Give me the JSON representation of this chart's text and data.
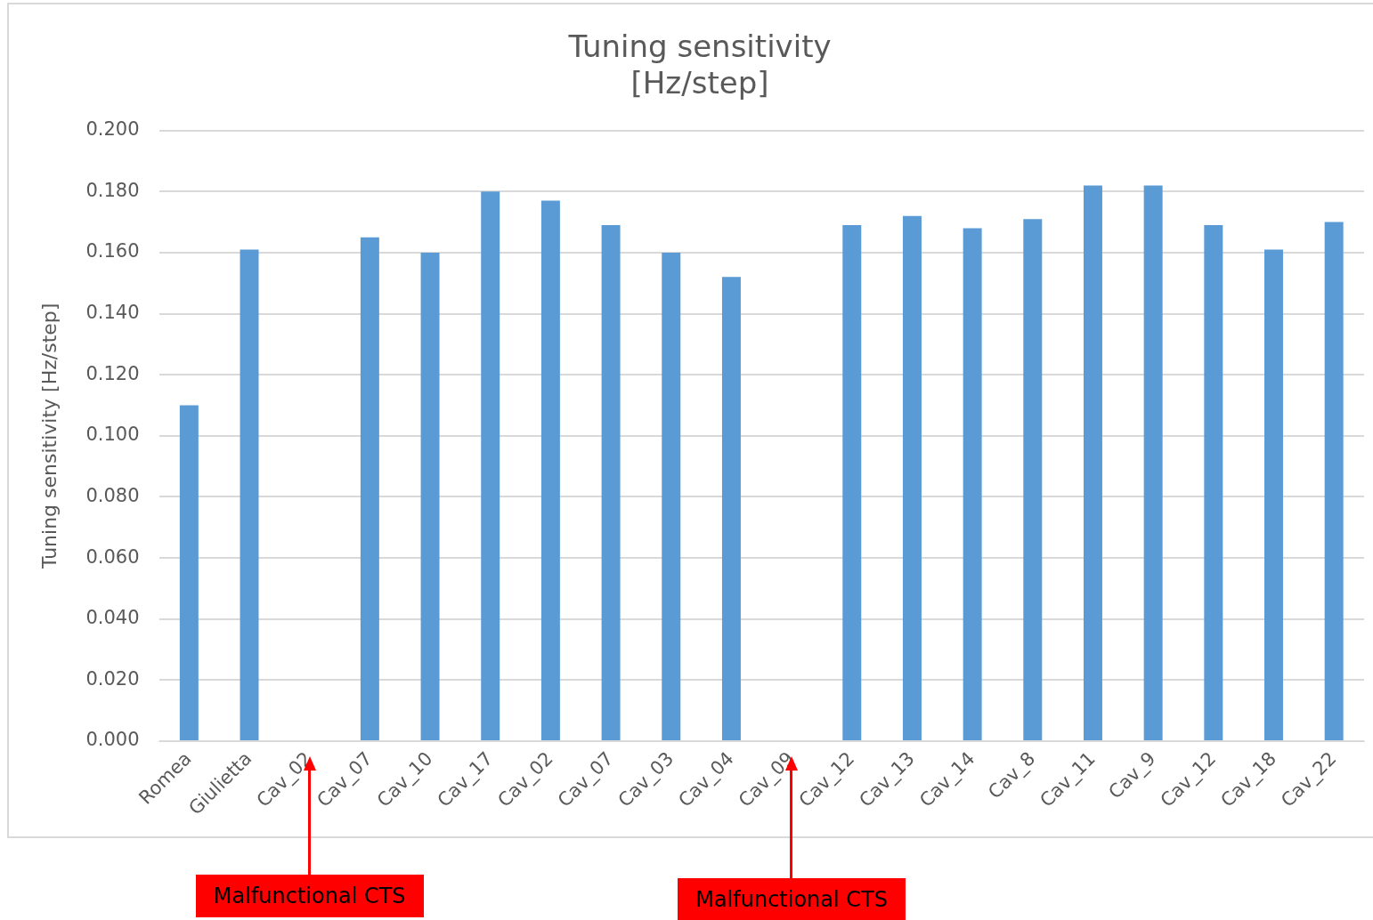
{
  "chart_data": {
    "type": "bar",
    "title": "Tuning sensitivity\n[Hz/step]",
    "ylabel": "Tuning sensitivity [Hz/step]",
    "categories": [
      "Romea",
      "Giulietta",
      "Cav_02",
      "Cav_07",
      "Cav_10",
      "Cav_17",
      "Cav_02",
      "Cav_07",
      "Cav_03",
      "Cav_04",
      "Cav_09",
      "Cav_12",
      "Cav_13",
      "Cav_14",
      "Cav_8",
      "Cav_11",
      "Cav_9",
      "Cav_12",
      "Cav_18",
      "Cav_22"
    ],
    "values": [
      0.11,
      0.161,
      null,
      0.165,
      0.16,
      0.18,
      0.177,
      0.169,
      0.16,
      0.152,
      null,
      0.169,
      0.172,
      0.168,
      0.171,
      0.182,
      0.182,
      0.169,
      0.161,
      0.17
    ],
    "color": "#5b9bd5",
    "ylim": [
      0,
      0.2
    ],
    "yticks": [
      {
        "value": 0,
        "label": "0.000"
      },
      {
        "value": 0.02,
        "label": "0.020"
      },
      {
        "value": 0.04,
        "label": "0.040"
      },
      {
        "value": 0.06,
        "label": "0.060"
      },
      {
        "value": 0.08,
        "label": "0.080"
      },
      {
        "value": 0.1,
        "label": "0.100"
      },
      {
        "value": 0.12,
        "label": "0.120"
      },
      {
        "value": 0.14,
        "label": "0.140"
      },
      {
        "value": 0.16,
        "label": "0.160"
      },
      {
        "value": 0.18,
        "label": "0.180"
      },
      {
        "value": 0.2,
        "label": "0.200"
      }
    ],
    "grid": "y",
    "legend": false,
    "annotations": [
      "Malfunctional CTS",
      "Malfunctional CTS"
    ]
  }
}
